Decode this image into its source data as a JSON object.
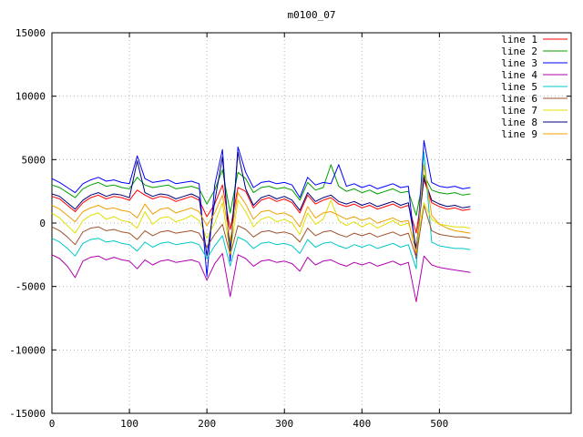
{
  "chart_data": {
    "type": "line",
    "title": "m0100_07",
    "xlabel": "",
    "ylabel": "",
    "xlim": [
      0,
      670
    ],
    "ylim": [
      -15000,
      15000
    ],
    "xticks": [
      0,
      100,
      200,
      300,
      400,
      500
    ],
    "yticks": [
      -15000,
      -10000,
      -5000,
      0,
      5000,
      10000,
      15000
    ],
    "grid": true,
    "grid_style": "dotted",
    "legend_position": "top-right",
    "background_color": "#ffffff",
    "border_color": "#000000",
    "grid_color": "#b8b8b8",
    "x": [
      0,
      10,
      20,
      30,
      40,
      50,
      60,
      70,
      80,
      90,
      100,
      110,
      120,
      130,
      140,
      150,
      160,
      170,
      180,
      190,
      200,
      210,
      220,
      230,
      240,
      250,
      260,
      270,
      280,
      290,
      300,
      310,
      320,
      330,
      340,
      350,
      360,
      370,
      380,
      390,
      400,
      410,
      420,
      430,
      440,
      450,
      460,
      470,
      480,
      490,
      500,
      510,
      520,
      530,
      540
    ],
    "series": [
      {
        "name": "line 1",
        "color": "#ff0000",
        "values": [
          2100,
          1900,
          1400,
          900,
          1600,
          2000,
          2200,
          1900,
          2100,
          2000,
          1800,
          2600,
          2200,
          1900,
          2100,
          2000,
          1700,
          1900,
          2100,
          1800,
          500,
          1500,
          3000,
          -500,
          2800,
          2500,
          1200,
          1800,
          2000,
          1700,
          1900,
          1600,
          800,
          2200,
          1500,
          1800,
          2000,
          1500,
          1300,
          1500,
          1200,
          1400,
          1100,
          1300,
          1500,
          1200,
          1400,
          -800,
          3400,
          1600,
          1300,
          1100,
          1200,
          1000,
          1100
        ]
      },
      {
        "name": "line 2",
        "color": "#00a000",
        "values": [
          3000,
          2800,
          2400,
          2000,
          2700,
          3000,
          3200,
          2900,
          3000,
          2800,
          2700,
          3600,
          3000,
          2800,
          2900,
          3000,
          2700,
          2800,
          2900,
          2700,
          1500,
          2600,
          4200,
          800,
          4000,
          3500,
          2400,
          2800,
          2900,
          2700,
          2800,
          2600,
          1800,
          3200,
          2600,
          2800,
          4600,
          2900,
          2500,
          2700,
          2400,
          2600,
          2300,
          2500,
          2700,
          2400,
          2500,
          600,
          3800,
          2600,
          2400,
          2300,
          2400,
          2200,
          2300
        ]
      },
      {
        "name": "line 3",
        "color": "#0000ff",
        "values": [
          3500,
          3200,
          2800,
          2400,
          3100,
          3400,
          3600,
          3300,
          3400,
          3200,
          3100,
          5300,
          3500,
          3200,
          3300,
          3400,
          3100,
          3200,
          3300,
          3100,
          -4200,
          3000,
          5800,
          -3000,
          6000,
          4000,
          2800,
          3200,
          3300,
          3100,
          3200,
          3000,
          2000,
          3600,
          3000,
          3200,
          3100,
          4600,
          2900,
          3100,
          2800,
          3000,
          2700,
          2900,
          3100,
          2800,
          2900,
          -2800,
          6500,
          3200,
          2900,
          2800,
          2900,
          2700,
          2800
        ]
      },
      {
        "name": "line 4",
        "color": "#b000b0",
        "values": [
          -2500,
          -2800,
          -3400,
          -4300,
          -3000,
          -2700,
          -2600,
          -2900,
          -2700,
          -2900,
          -3000,
          -3600,
          -2900,
          -3300,
          -3000,
          -2900,
          -3100,
          -3000,
          -2900,
          -3100,
          -4500,
          -3200,
          -2400,
          -5800,
          -2500,
          -2800,
          -3400,
          -3000,
          -2900,
          -3100,
          -3000,
          -3200,
          -3800,
          -2700,
          -3300,
          -3000,
          -2900,
          -3200,
          -3400,
          -3100,
          -3300,
          -3100,
          -3400,
          -3200,
          -3000,
          -3300,
          -3100,
          -6200,
          -2600,
          -3300,
          -3500,
          -3600,
          -3700,
          -3800,
          -3900
        ]
      },
      {
        "name": "line 5",
        "color": "#00c8c8",
        "values": [
          -1200,
          -1500,
          -2000,
          -2600,
          -1600,
          -1300,
          -1200,
          -1500,
          -1400,
          -1600,
          -1700,
          -2200,
          -1500,
          -1900,
          -1600,
          -1500,
          -1700,
          -1600,
          -1500,
          -1700,
          -2800,
          -1800,
          -1000,
          -3400,
          -1100,
          -1400,
          -2000,
          -1600,
          -1500,
          -1700,
          -1600,
          -1800,
          -2400,
          -1300,
          -1900,
          -1600,
          -1500,
          -1800,
          -2000,
          -1700,
          -1900,
          -1700,
          -2000,
          -1800,
          -1600,
          -1900,
          -1700,
          -3600,
          5600,
          -1500,
          -1800,
          -1900,
          -2000,
          -2000,
          -2100
        ]
      },
      {
        "name": "line 6",
        "color": "#a0522d",
        "values": [
          -300,
          -600,
          -1100,
          -1700,
          -700,
          -400,
          -300,
          -600,
          -500,
          -700,
          -800,
          -1300,
          -600,
          -1000,
          -700,
          -600,
          -800,
          -700,
          -600,
          -800,
          -1900,
          -900,
          -100,
          -2500,
          -200,
          -500,
          -1100,
          -700,
          -600,
          -800,
          -700,
          -900,
          -1500,
          -400,
          -1000,
          -700,
          -600,
          -900,
          -1100,
          -800,
          -1000,
          -800,
          -1100,
          -900,
          -700,
          -1000,
          -800,
          -2700,
          1400,
          -600,
          -900,
          -1000,
          -1100,
          -1100,
          -1200
        ]
      },
      {
        "name": "line 7",
        "color": "#e0e000",
        "values": [
          800,
          400,
          -200,
          -800,
          200,
          600,
          800,
          300,
          500,
          200,
          100,
          -400,
          900,
          -100,
          400,
          500,
          100,
          300,
          600,
          200,
          -1200,
          0,
          1600,
          -2400,
          1800,
          900,
          -300,
          300,
          500,
          100,
          300,
          0,
          -900,
          800,
          -100,
          300,
          1800,
          200,
          -200,
          100,
          -300,
          0,
          -400,
          -100,
          200,
          -200,
          0,
          -1800,
          1600,
          300,
          -100,
          -200,
          -300,
          -300,
          -400
        ]
      },
      {
        "name": "line 8",
        "color": "#000080",
        "values": [
          2300,
          2100,
          1600,
          1100,
          1800,
          2200,
          2400,
          2100,
          2300,
          2200,
          2000,
          4900,
          2400,
          2100,
          2300,
          2200,
          1900,
          2100,
          2300,
          2000,
          -2600,
          1700,
          5200,
          -2200,
          5600,
          2700,
          1400,
          2000,
          2200,
          1900,
          2100,
          1800,
          1000,
          2400,
          1700,
          2000,
          2200,
          1700,
          1500,
          1700,
          1400,
          1600,
          1300,
          1500,
          1700,
          1400,
          1600,
          -2000,
          3600,
          1800,
          1500,
          1300,
          1400,
          1200,
          1300
        ]
      },
      {
        "name": "line 9",
        "color": "#f0a000",
        "values": [
          1400,
          1100,
          600,
          100,
          900,
          1200,
          1400,
          1100,
          1200,
          1000,
          900,
          400,
          1500,
          700,
          1100,
          1200,
          800,
          1000,
          1200,
          900,
          -200,
          800,
          2200,
          -1400,
          2400,
          1500,
          300,
          900,
          1000,
          700,
          800,
          500,
          -300,
          1300,
          400,
          800,
          900,
          600,
          300,
          500,
          200,
          400,
          0,
          200,
          400,
          100,
          200,
          -2400,
          4600,
          600,
          -100,
          -400,
          -600,
          -700,
          -800
        ]
      }
    ]
  }
}
